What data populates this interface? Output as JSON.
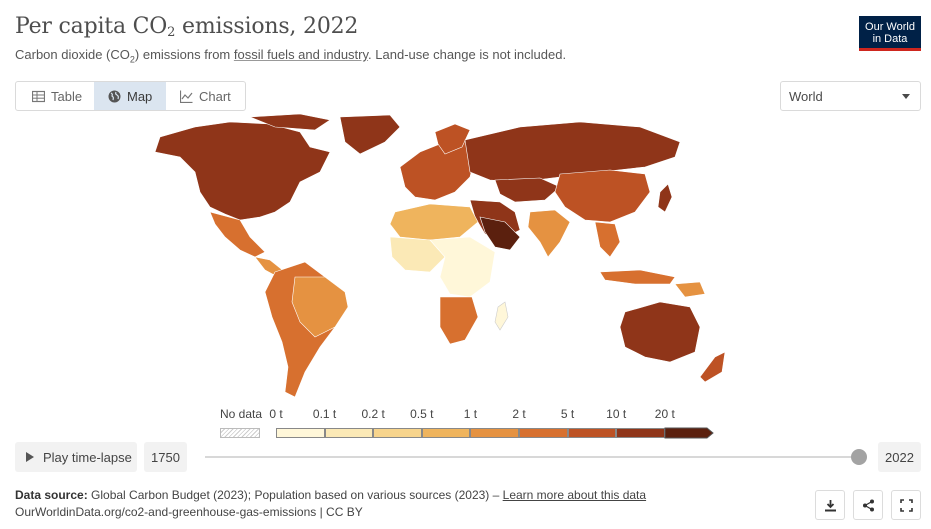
{
  "header": {
    "title_main": "Per capita CO",
    "title_sub": "2",
    "title_end": " emissions, 2022",
    "subtitle_pre": "Carbon dioxide (CO",
    "subtitle_sub": "2",
    "subtitle_mid": ") emissions from ",
    "subtitle_link": "fossil fuels and industry",
    "subtitle_post": ". Land-use change is not included.",
    "logo_line1": "Our World",
    "logo_line2": "in Data"
  },
  "tabs": [
    {
      "label": "Table",
      "icon": "table-icon",
      "active": false
    },
    {
      "label": "Map",
      "icon": "globe-icon",
      "active": true
    },
    {
      "label": "Chart",
      "icon": "line-chart-icon",
      "active": false
    }
  ],
  "region_select": {
    "value": "World"
  },
  "legend": {
    "nodata_label": "No data",
    "nodata_color": "pattern-hatched",
    "bins": [
      {
        "label": "0 t",
        "color": "#fff7d9"
      },
      {
        "label": "0.1 t",
        "color": "#fbe9b6"
      },
      {
        "label": "0.2 t",
        "color": "#f7d48c"
      },
      {
        "label": "0.5 t",
        "color": "#efb45d"
      },
      {
        "label": "1 t",
        "color": "#e59241"
      },
      {
        "label": "2 t",
        "color": "#d7702f"
      },
      {
        "label": "5 t",
        "color": "#bd5224"
      },
      {
        "label": "10 t",
        "color": "#8f3519"
      },
      {
        "label": "20 t",
        "color": "#5b200e"
      }
    ]
  },
  "timeline": {
    "play_label": "Play time-lapse",
    "start_year": "1750",
    "end_year": "2022",
    "progress": 1.0
  },
  "footer": {
    "source_label": "Data source:",
    "source_text": " Global Carbon Budget (2023); Population based on various sources (2023) – ",
    "source_link": "Learn more about this data",
    "url_line": "OurWorldinData.org/co2-and-greenhouse-gas-emissions | CC BY"
  },
  "actions": [
    {
      "icon": "download-icon"
    },
    {
      "icon": "share-icon"
    },
    {
      "icon": "fullscreen-icon"
    }
  ]
}
